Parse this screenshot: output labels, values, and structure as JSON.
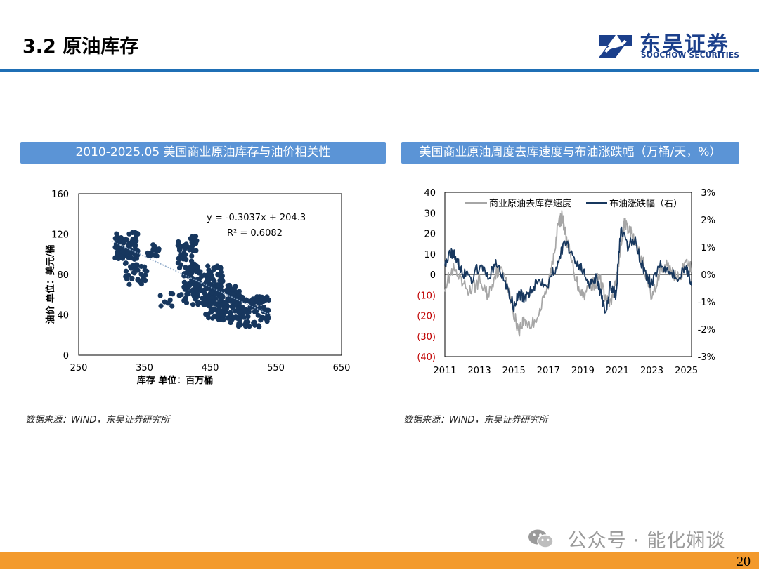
{
  "page": {
    "title": "3.2 原油库存",
    "page_number": "20",
    "brand_color": "#1f6fb5",
    "panel_color": "#5b94d6",
    "footer_color": "#f39a2d"
  },
  "logo": {
    "name_cn": "东吴证券",
    "name_en": "SOOCHOW SECURITIES",
    "icon": "soochow-logo-icon"
  },
  "watermark": {
    "text": "公众号 · 能化娴谈",
    "icon": "wechat-icon"
  },
  "left_panel": {
    "title": "2010-2025.05 美国商业原油库存与油价相关性",
    "source": "数据来源：WIND，东吴证券研究所"
  },
  "right_panel": {
    "title": "美国商业原油周度去库速度与布油涨跌幅（万桶/天，%）",
    "source": "数据来源：WIND，东吴证券研究所"
  },
  "chart_data": [
    {
      "type": "scatter",
      "xlabel": "库存 单位：百万桶",
      "ylabel": "油价 单位：美元/桶",
      "xlim": [
        250,
        650
      ],
      "ylim": [
        0,
        160
      ],
      "xticks": [
        "250",
        "350",
        "450",
        "550",
        "650"
      ],
      "yticks": [
        "0",
        "40",
        "80",
        "120",
        "160"
      ],
      "equation": "y = -0.3037x + 204.3",
      "r_squared": "R² = 0.6082",
      "trendline": {
        "slope": -0.3037,
        "intercept": 204.3,
        "x_range": [
          300,
          540
        ]
      },
      "marker_color": "#17375e",
      "clusters": [
        {
          "x": [
            305,
            340
          ],
          "y": [
            95,
            122
          ],
          "n": 90
        },
        {
          "x": [
            320,
            355
          ],
          "y": [
            70,
            92
          ],
          "n": 40
        },
        {
          "x": [
            355,
            375
          ],
          "y": [
            98,
            112
          ],
          "n": 15
        },
        {
          "x": [
            400,
            430
          ],
          "y": [
            85,
            118
          ],
          "n": 45
        },
        {
          "x": [
            410,
            470
          ],
          "y": [
            50,
            90
          ],
          "n": 170
        },
        {
          "x": [
            440,
            500
          ],
          "y": [
            35,
            70
          ],
          "n": 140
        },
        {
          "x": [
            480,
            540
          ],
          "y": [
            28,
            58
          ],
          "n": 100
        },
        {
          "x": [
            360,
            410
          ],
          "y": [
            48,
            62
          ],
          "n": 10
        }
      ]
    },
    {
      "type": "line",
      "legend": [
        "商业原油去库存速度",
        "布油涨跌幅（右）"
      ],
      "legend_position": "top",
      "x_ticks": [
        "2011",
        "2013",
        "2015",
        "2017",
        "2019",
        "2021",
        "2023",
        "2025"
      ],
      "x_range": [
        2011,
        2025.3
      ],
      "y_left_ticks": [
        "40",
        "30",
        "20",
        "10",
        "0",
        "(10)",
        "(20)",
        "(30)",
        "(40)"
      ],
      "y_left_range": [
        -40,
        40
      ],
      "y_right_ticks": [
        "3%",
        "2%",
        "1%",
        "0%",
        "-1%",
        "-2%",
        "-3%"
      ],
      "y_right_range": [
        -3,
        3
      ],
      "negative_label_color": "#c00000",
      "series": [
        {
          "name": "商业原油去库存速度",
          "axis": "left",
          "color": "#a6a6a6",
          "x": [
            2011.0,
            2011.5,
            2012.0,
            2012.5,
            2013.0,
            2013.5,
            2014.0,
            2014.5,
            2015.0,
            2015.3,
            2015.6,
            2016.0,
            2016.5,
            2017.0,
            2017.3,
            2017.6,
            2017.8,
            2018.0,
            2018.3,
            2018.7,
            2019.0,
            2019.5,
            2020.0,
            2020.3,
            2020.6,
            2020.9,
            2021.2,
            2021.4,
            2021.7,
            2022.0,
            2022.5,
            2023.0,
            2023.5,
            2024.0,
            2024.5,
            2025.0,
            2025.3
          ],
          "y": [
            -5,
            2,
            -5,
            -8,
            -3,
            -10,
            2,
            1,
            -20,
            -27,
            -22,
            -25,
            -18,
            -5,
            10,
            25,
            28,
            20,
            8,
            -5,
            -10,
            -5,
            -2,
            -12,
            -15,
            -5,
            12,
            25,
            22,
            15,
            5,
            -12,
            3,
            4,
            -2,
            5,
            3
          ]
        },
        {
          "name": "布油涨跌幅（右）",
          "axis": "right",
          "color": "#17375e",
          "x": [
            2011.0,
            2011.3,
            2011.7,
            2012.0,
            2012.5,
            2013.0,
            2013.5,
            2014.0,
            2014.5,
            2015.0,
            2015.3,
            2015.7,
            2016.0,
            2016.5,
            2017.0,
            2017.5,
            2018.0,
            2018.5,
            2019.0,
            2019.4,
            2019.8,
            2020.0,
            2020.3,
            2020.6,
            2020.9,
            2021.2,
            2021.6,
            2022.0,
            2022.4,
            2022.8,
            2023.0,
            2023.5,
            2024.0,
            2024.5,
            2025.0,
            2025.3
          ],
          "y": [
            0.4,
            0.8,
            0.6,
            0.1,
            -0.2,
            0.3,
            -0.1,
            0.4,
            -0.3,
            -1.2,
            -0.7,
            -0.9,
            -0.5,
            -0.2,
            -0.3,
            0.4,
            1.2,
            0.6,
            0.1,
            -0.3,
            -0.1,
            -0.6,
            -1.5,
            -0.3,
            -0.8,
            1.6,
            1.0,
            1.3,
            0.4,
            -0.2,
            -0.3,
            0.4,
            0.2,
            -0.2,
            0.3,
            -0.4
          ]
        }
      ]
    }
  ]
}
